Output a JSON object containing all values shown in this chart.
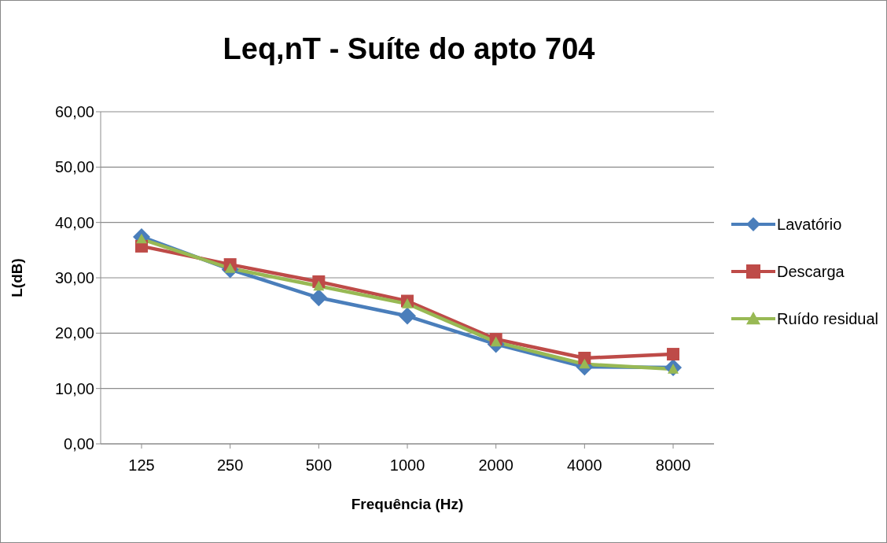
{
  "chart_data": {
    "type": "line",
    "title": "Leq,nT - Suíte do apto 704",
    "xlabel": "Frequência (Hz)",
    "ylabel": "L(dB)",
    "categories": [
      "125",
      "250",
      "500",
      "1000",
      "2000",
      "4000",
      "8000"
    ],
    "ylim": [
      0,
      60
    ],
    "yticks": [
      {
        "value": 0,
        "label": "0,00"
      },
      {
        "value": 10,
        "label": "10,00"
      },
      {
        "value": 20,
        "label": "20,00"
      },
      {
        "value": 30,
        "label": "30,00"
      },
      {
        "value": 40,
        "label": "40,00"
      },
      {
        "value": 50,
        "label": "50,00"
      },
      {
        "value": 60,
        "label": "60,00"
      }
    ],
    "grid": "y",
    "legend": "right",
    "series": [
      {
        "name": "Lavatório",
        "color": "#4a7ebb",
        "marker": "diamond",
        "values": [
          37.4,
          31.5,
          26.4,
          23.1,
          18.0,
          13.9,
          13.8
        ]
      },
      {
        "name": "Descarga",
        "color": "#be4b48",
        "marker": "square",
        "values": [
          35.7,
          32.4,
          29.3,
          25.8,
          18.9,
          15.5,
          16.2
        ]
      },
      {
        "name": "Ruído residual",
        "color": "#98b954",
        "marker": "triangle",
        "values": [
          37.0,
          31.7,
          28.5,
          25.3,
          18.4,
          14.4,
          13.5
        ]
      }
    ]
  }
}
